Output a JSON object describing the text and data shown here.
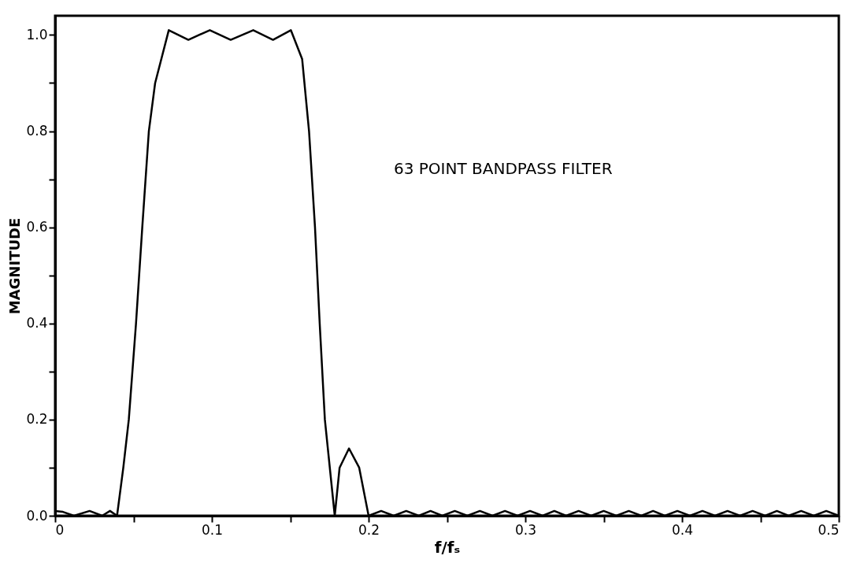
{
  "chart_data": {
    "type": "line",
    "xlabel": "f/fₛ",
    "ylabel": "MAGNITUDE",
    "annotations": [
      "63 POINT BANDPASS FILTER"
    ],
    "xlim": [
      0,
      0.5
    ],
    "ylim": [
      0,
      1.04
    ],
    "xticks": [
      {
        "value": 0,
        "label": "0"
      },
      {
        "value": 0.05,
        "label": null
      },
      0.1,
      {
        "value": 0.15,
        "label": null
      },
      0.2,
      {
        "value": 0.25,
        "label": null
      },
      0.3,
      {
        "value": 0.35,
        "label": null
      },
      0.4,
      {
        "value": 0.45,
        "label": null
      },
      0.5
    ],
    "yticks": [
      {
        "value": 0,
        "label": "0.0"
      },
      {
        "value": 0.1,
        "label": null
      },
      0.2,
      {
        "value": 0.3,
        "label": null
      },
      0.4,
      {
        "value": 0.5,
        "label": null
      },
      0.6,
      {
        "value": 0.7,
        "label": null
      },
      0.8,
      {
        "value": 0.9,
        "label": null
      },
      {
        "value": 1.0,
        "label": "1.0"
      }
    ],
    "grid": false,
    "marker": "none",
    "line_style": "solid",
    "series": [
      {
        "color": "#000000",
        "x": [
          0,
          0.005,
          0.012,
          0.022,
          0.03,
          0.035,
          0.0395,
          0.0435,
          0.047,
          0.0516,
          0.0556,
          0.0598,
          0.0638,
          0.0725,
          0.085,
          0.0987,
          0.112,
          0.1264,
          0.139,
          0.1504,
          0.1576,
          0.162,
          0.1658,
          0.1688,
          0.1721,
          0.1784,
          0.1815,
          0.1875,
          0.194,
          0.2,
          0.208,
          0.216,
          0.224,
          0.232,
          0.2395,
          0.247,
          0.255,
          0.263,
          0.271,
          0.279,
          0.287,
          0.295,
          0.303,
          0.311,
          0.3185,
          0.326,
          0.334,
          0.342,
          0.35,
          0.358,
          0.366,
          0.374,
          0.3815,
          0.389,
          0.397,
          0.405,
          0.413,
          0.421,
          0.429,
          0.437,
          0.445,
          0.453,
          0.4605,
          0.468,
          0.476,
          0.484,
          0.492,
          0.5
        ],
        "values": [
          0.01,
          0.008,
          0,
          0.01,
          0,
          0.01,
          0,
          0.1,
          0.2,
          0.4,
          0.6,
          0.8,
          0.9,
          1.01,
          0.99,
          1.01,
          0.99,
          1.01,
          0.99,
          1.01,
          0.95,
          0.8,
          0.6,
          0.4,
          0.2,
          0,
          0.1,
          0.14,
          0.1,
          0,
          0.01,
          0,
          0.01,
          0,
          0.01,
          0,
          0.01,
          0,
          0.01,
          0,
          0.01,
          0,
          0.01,
          0,
          0.01,
          0,
          0.01,
          0,
          0.01,
          0,
          0.01,
          0,
          0.01,
          0,
          0.01,
          0,
          0.01,
          0,
          0.01,
          0,
          0.01,
          0,
          0.01,
          0,
          0.01,
          0,
          0.01,
          0
        ]
      }
    ]
  }
}
